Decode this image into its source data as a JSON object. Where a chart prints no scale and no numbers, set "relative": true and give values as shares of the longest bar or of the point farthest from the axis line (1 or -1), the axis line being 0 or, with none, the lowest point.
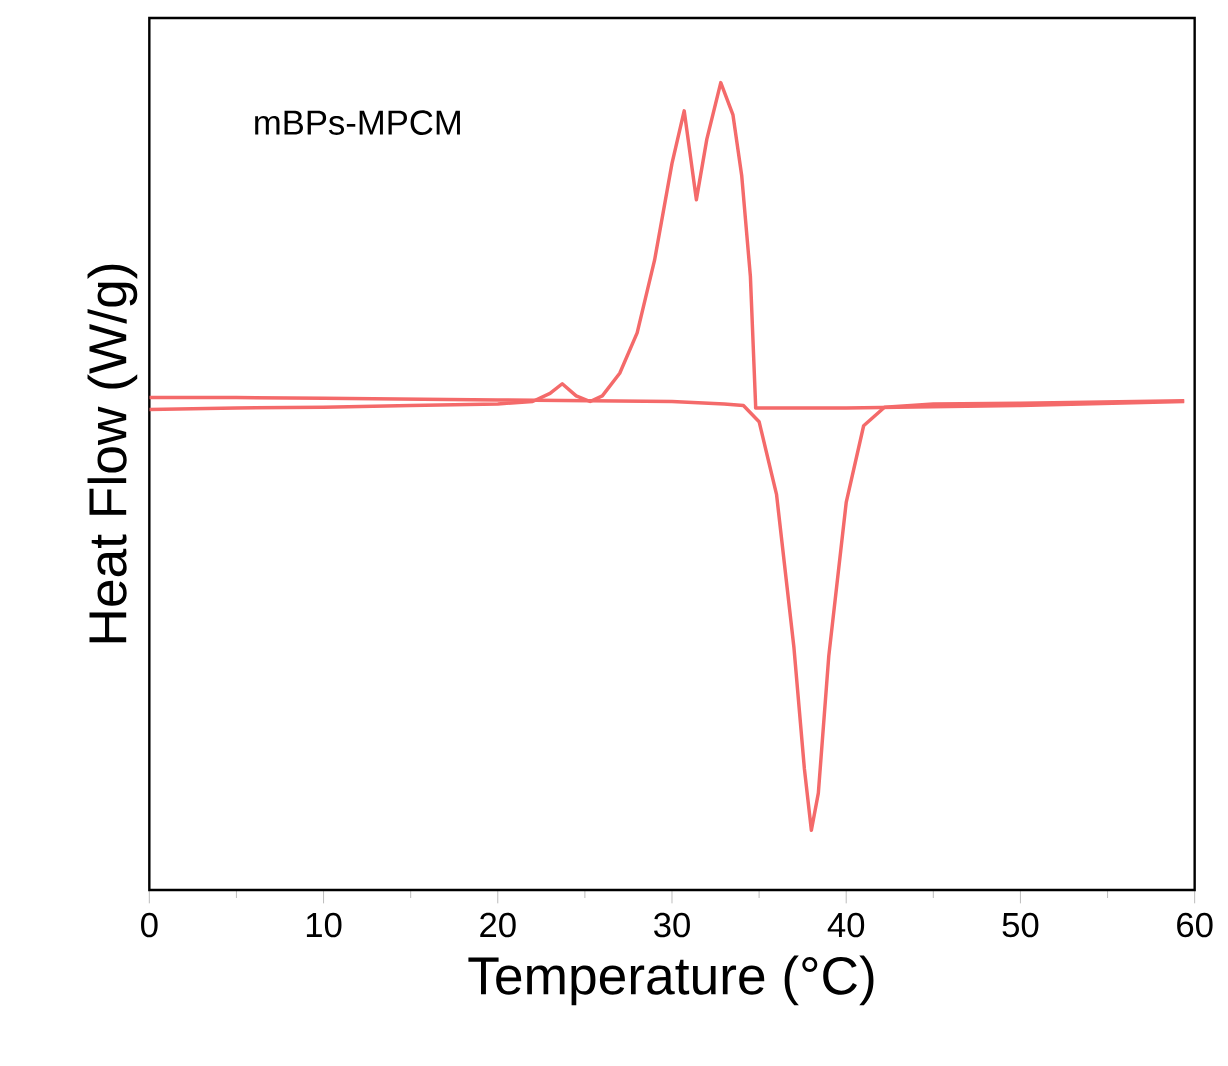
{
  "chart_data": {
    "type": "line",
    "relative": true,
    "xlabel": "Temperature (°C)",
    "ylabel": "Heat Flow (W/g)",
    "annotations": [
      "mBPs-MPCM"
    ],
    "xlim": [
      0,
      60
    ],
    "xticks": [
      0,
      10,
      20,
      30,
      40,
      50,
      60
    ],
    "marker": "none",
    "line_style": "solid",
    "grid": false,
    "series": [
      {
        "color": "#f46a6a",
        "x": [
          0,
          5,
          10,
          15,
          20,
          22,
          23,
          23.7,
          24.5,
          25.3,
          26,
          27,
          28,
          29,
          30,
          30.7,
          31.4,
          32,
          32.8,
          33.5,
          34,
          34.5,
          34.8,
          34.8,
          40,
          50,
          59.4
        ],
        "values": [
          0.595,
          0.597,
          0.598,
          0.6,
          0.602,
          0.605,
          0.615,
          0.627,
          0.612,
          0.605,
          0.612,
          0.64,
          0.69,
          0.78,
          0.9,
          0.965,
          0.855,
          0.93,
          1.0,
          0.96,
          0.885,
          0.76,
          0.6,
          0.597,
          0.597,
          0.6,
          0.605
        ]
      },
      {
        "color": "#f46a6a",
        "x": [
          0,
          5,
          10,
          20,
          30,
          33,
          34.1,
          35,
          36,
          37,
          37.6,
          38,
          38.4,
          39,
          40,
          41,
          42.2,
          45,
          50,
          59.4
        ],
        "values": [
          0.61,
          0.61,
          0.609,
          0.607,
          0.605,
          0.602,
          0.6,
          0.58,
          0.49,
          0.3,
          0.15,
          0.074,
          0.12,
          0.29,
          0.48,
          0.575,
          0.598,
          0.602,
          0.603,
          0.606
        ]
      }
    ]
  }
}
